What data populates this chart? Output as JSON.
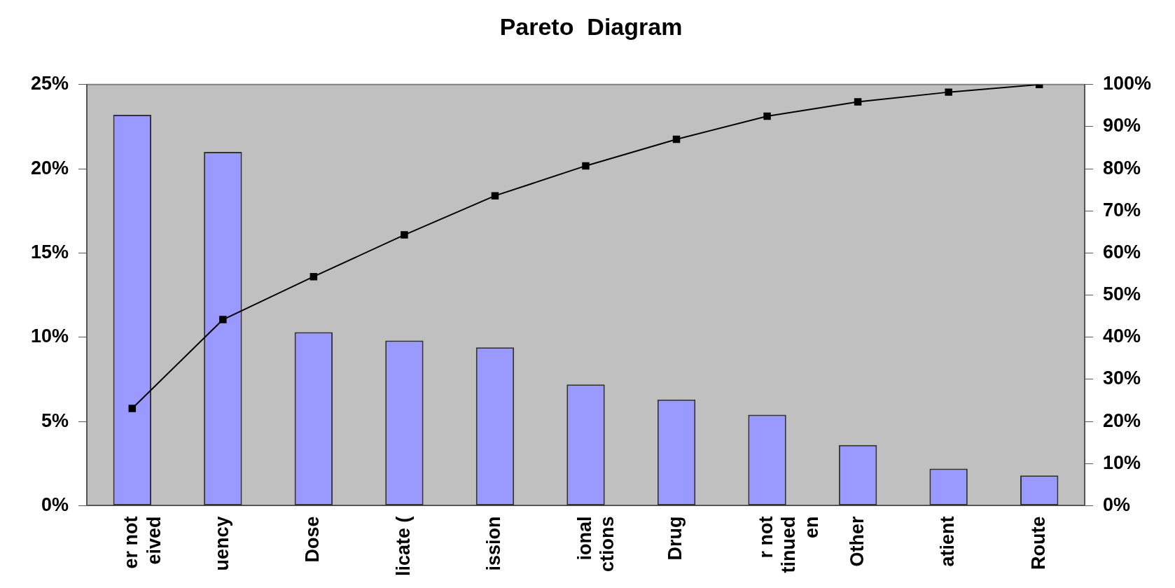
{
  "chart_data": {
    "type": "bar",
    "title": "Pareto  Diagram",
    "categories": [
      "er not\neived",
      "uency",
      "Dose",
      "licate (",
      "ission",
      "ional\nctions",
      "Drug",
      "r not\ntinued\nen",
      "Other",
      "atient",
      "Route"
    ],
    "series": [
      {
        "color": "#9999ff",
        "values": [
          23.2,
          21.0,
          10.3,
          9.8,
          9.4,
          7.2,
          6.3,
          5.4,
          3.6,
          2.2,
          1.8
        ]
      },
      {
        "type": "line",
        "axis": "y2",
        "color": "#000000",
        "marker": "square",
        "values": [
          23.1,
          44.2,
          54.4,
          64.3,
          73.6,
          80.7,
          87.0,
          92.5,
          95.9,
          98.2,
          100
        ]
      }
    ],
    "ylim": [
      0,
      25
    ],
    "yticks": [
      {
        "value": 0,
        "label": "0%"
      },
      {
        "value": 5,
        "label": "5%"
      },
      {
        "value": 10,
        "label": "10%"
      },
      {
        "value": 15,
        "label": "15%"
      },
      {
        "value": 20,
        "label": "20%"
      },
      {
        "value": 25,
        "label": "25%"
      }
    ],
    "y2lim": [
      0,
      100
    ],
    "y2ticks": [
      {
        "value": 0,
        "label": "0%"
      },
      {
        "value": 10,
        "label": "10%"
      },
      {
        "value": 20,
        "label": "20%"
      },
      {
        "value": 30,
        "label": "30%"
      },
      {
        "value": 40,
        "label": "40%"
      },
      {
        "value": 50,
        "label": "50%"
      },
      {
        "value": 60,
        "label": "60%"
      },
      {
        "value": 70,
        "label": "70%"
      },
      {
        "value": 80,
        "label": "80%"
      },
      {
        "value": 90,
        "label": "90%"
      },
      {
        "value": 100,
        "label": "100%"
      }
    ],
    "grid": false,
    "legend": false
  }
}
